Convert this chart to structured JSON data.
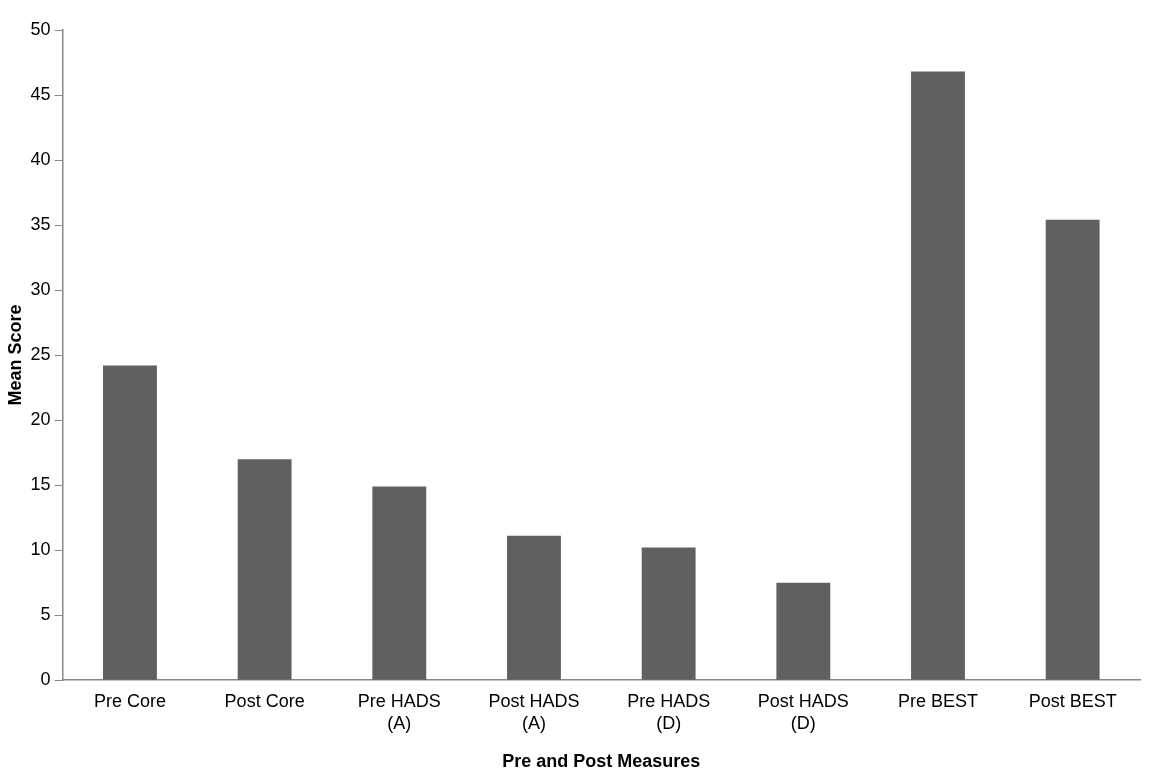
{
  "chart_data": {
    "type": "bar",
    "xlabel": "Pre and Post Measures",
    "ylabel": "Mean Score",
    "categories": [
      "Pre Core",
      "Post Core",
      "Pre HADS (A)",
      "Post HADS (A)",
      "Pre HADS (D)",
      "Post HADS (D)",
      "Pre BEST",
      "Post BEST"
    ],
    "values": [
      24.2,
      17.0,
      14.9,
      11.1,
      10.2,
      7.5,
      46.8,
      35.4
    ],
    "color": "#606060",
    "ylim": [
      0,
      50
    ],
    "yticks": [
      0,
      5,
      10,
      15,
      20,
      25,
      30,
      35,
      40,
      45,
      50
    ],
    "grid": false,
    "legend": false
  }
}
